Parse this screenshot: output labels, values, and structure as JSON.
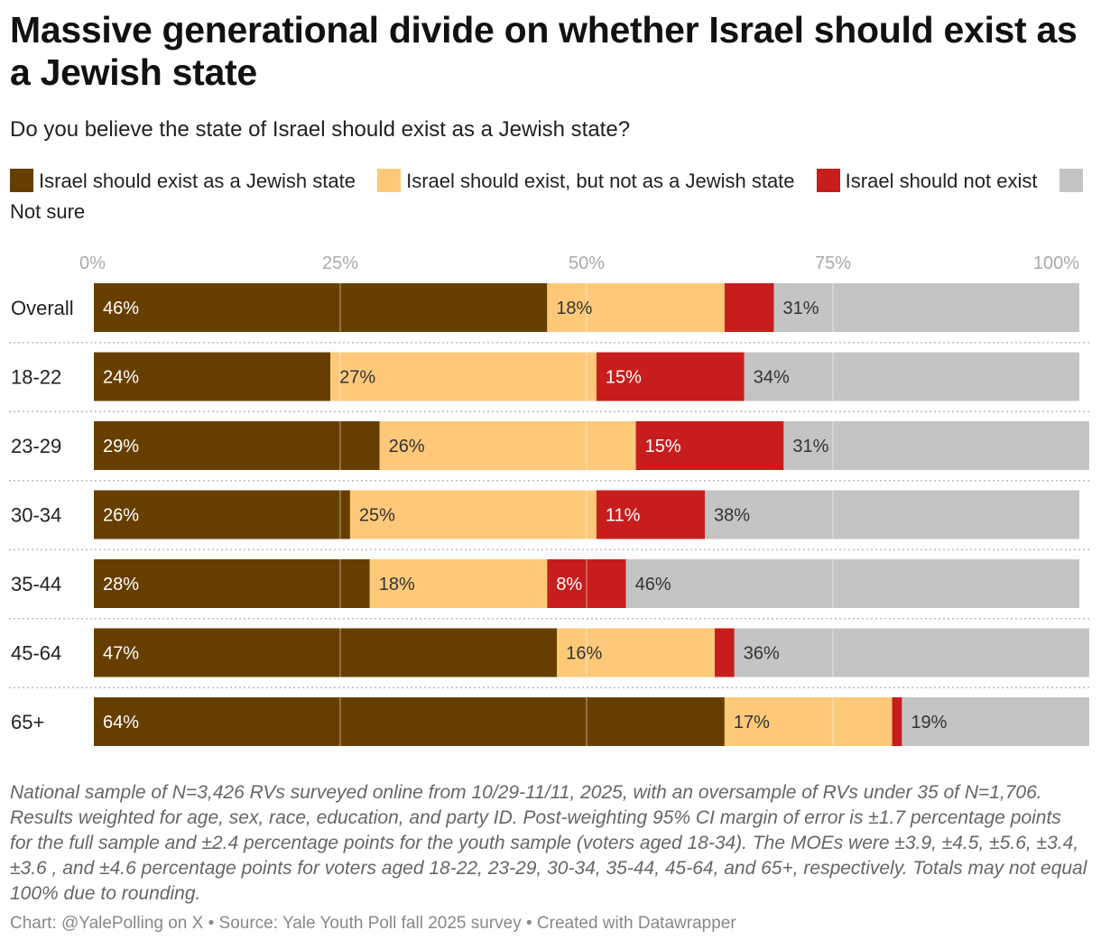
{
  "title": "Massive generational divide on whether Israel should exist as a Jewish state",
  "subtitle": "Do you believe the state of Israel should exist as a Jewish state?",
  "legend": [
    {
      "label": "Israel should exist as a Jewish state",
      "color": "#663f00"
    },
    {
      "label": "Israel should exist, but not as a Jewish state",
      "color": "#fdc979"
    },
    {
      "label": "Israel should not exist",
      "color": "#c71e1d"
    },
    {
      "label": "Not sure",
      "color": "#c4c4c4"
    }
  ],
  "chart_data": {
    "type": "bar",
    "orientation": "horizontal-stacked",
    "title": "Do you believe the state of Israel should exist as a Jewish state?",
    "x_ticks": [
      "0%",
      "25%",
      "50%",
      "75%",
      "100%"
    ],
    "xlim": [
      0,
      100
    ],
    "categories": [
      "Overall",
      "18-22",
      "23-29",
      "30-34",
      "35-44",
      "45-64",
      "65+"
    ],
    "series": [
      {
        "name": "Israel should exist as a Jewish state",
        "color": "#663f00",
        "values": [
          46,
          24,
          29,
          26,
          28,
          47,
          64
        ],
        "labels": [
          "46%",
          "24%",
          "29%",
          "26%",
          "28%",
          "47%",
          "64%"
        ],
        "label_color": "#ffffff"
      },
      {
        "name": "Israel should exist, but not as a Jewish state",
        "color": "#fdc979",
        "values": [
          18,
          27,
          26,
          25,
          18,
          16,
          17
        ],
        "labels": [
          "18%",
          "27%",
          "26%",
          "25%",
          "18%",
          "16%",
          "17%"
        ],
        "label_color": "#333333"
      },
      {
        "name": "Israel should not exist",
        "color": "#c71e1d",
        "values": [
          5,
          15,
          15,
          11,
          8,
          2,
          1
        ],
        "labels": [
          "",
          "15%",
          "15%",
          "11%",
          "8%",
          "",
          ""
        ],
        "label_color": "#ffffff"
      },
      {
        "name": "Not sure",
        "color": "#c4c4c4",
        "values": [
          31,
          34,
          31,
          38,
          46,
          36,
          19
        ],
        "labels": [
          "31%",
          "34%",
          "31%",
          "38%",
          "46%",
          "36%",
          "19%"
        ],
        "label_color": "#333333"
      }
    ]
  },
  "footnote": "National sample of N=3,426 RVs surveyed online from 10/29-11/11, 2025, with an oversample of RVs under 35 of N=1,706. Results weighted for age, sex, race, education, and party ID. Post-weighting 95% CI margin of error is ±1.7 percentage points for the full sample and ±2.4 percentage points for the youth sample (voters aged 18-34). The MOEs were ±3.9, ±4.5, ±5.6, ±3.4, ±3.6 , and ±4.6 percentage points for voters aged 18-22, 23-29, 30-34, 35-44, 45-64, and 65+, respectively. Totals may not equal 100% due to rounding.",
  "credit": "Chart: @YalePolling on X • Source: Yale Youth Poll fall 2025 survey • Created with Datawrapper"
}
